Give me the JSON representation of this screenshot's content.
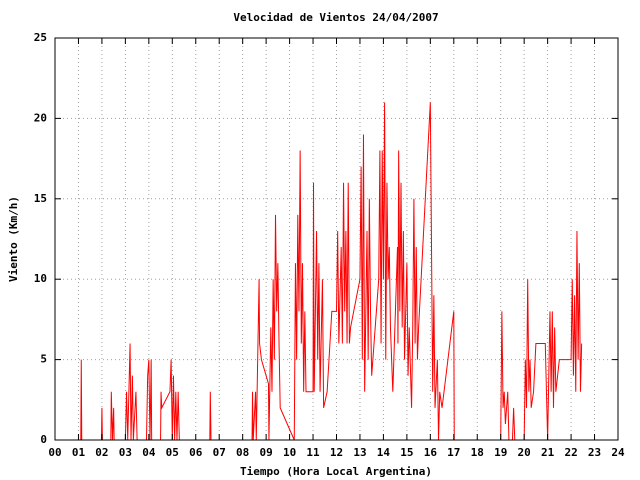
{
  "chart_data": {
    "type": "line",
    "title": "Velocidad de Vientos 24/04/2007",
    "x_label": "Tiempo (Hora Local Argentina)",
    "y_label": "Viento (Km/h)",
    "xlim": [
      0,
      24
    ],
    "ylim": [
      0,
      25
    ],
    "xticks": [
      {
        "value": 0,
        "label": "00"
      },
      {
        "value": 1,
        "label": "01"
      },
      {
        "value": 2,
        "label": "02"
      },
      {
        "value": 3,
        "label": "03"
      },
      {
        "value": 4,
        "label": "04"
      },
      {
        "value": 5,
        "label": "05"
      },
      {
        "value": 6,
        "label": "06"
      },
      {
        "value": 7,
        "label": "07"
      },
      {
        "value": 8,
        "label": "08"
      },
      {
        "value": 9,
        "label": "09"
      },
      10,
      11,
      12,
      13,
      14,
      15,
      16,
      17,
      18,
      19,
      20,
      21,
      22,
      23,
      24
    ],
    "yticks": [
      0,
      5,
      10,
      15,
      20,
      25
    ],
    "grid": true,
    "x": [
      0,
      1.1,
      1.12,
      1.14,
      1.98,
      2.0,
      2.02,
      2.38,
      2.4,
      2.45,
      2.5,
      2.52,
      3.0,
      3.05,
      3.1,
      3.2,
      3.24,
      3.3,
      3.34,
      3.45,
      3.5,
      3.9,
      3.95,
      4.0,
      4.05,
      4.1,
      4.12,
      4.5,
      4.52,
      4.55,
      4.9,
      4.95,
      5.0,
      5.05,
      5.1,
      5.15,
      5.2,
      5.25,
      5.3,
      6.6,
      6.62,
      6.65,
      8.4,
      8.42,
      8.45,
      8.55,
      8.58,
      8.7,
      8.72,
      8.8,
      9.1,
      9.12,
      9.2,
      9.25,
      9.3,
      9.35,
      9.4,
      9.45,
      9.5,
      9.55,
      9.6,
      10.2,
      10.25,
      10.3,
      10.35,
      10.4,
      10.45,
      10.5,
      10.55,
      10.6,
      10.65,
      10.7,
      11.0,
      11.02,
      11.05,
      11.15,
      11.2,
      11.25,
      11.3,
      11.4,
      11.45,
      11.6,
      11.8,
      12.0,
      12.05,
      12.1,
      12.2,
      12.25,
      12.3,
      12.35,
      12.4,
      12.45,
      12.5,
      12.55,
      12.6,
      13.0,
      13.05,
      13.1,
      13.15,
      13.2,
      13.3,
      13.35,
      13.4,
      13.45,
      13.5,
      13.8,
      13.85,
      13.9,
      13.95,
      14.0,
      14.05,
      14.1,
      14.15,
      14.2,
      14.25,
      14.3,
      14.4,
      14.6,
      14.62,
      14.65,
      14.7,
      14.75,
      14.8,
      14.85,
      14.9,
      15.0,
      15.05,
      15.1,
      15.2,
      15.25,
      15.3,
      15.35,
      15.4,
      15.45,
      15.5,
      16.0,
      16.05,
      16.1,
      16.15,
      16.2,
      16.3,
      16.35,
      16.4,
      16.5,
      17.0,
      17.02,
      19.0,
      19.05,
      19.1,
      19.15,
      19.2,
      19.3,
      19.35,
      19.5,
      19.55,
      19.6,
      20.0,
      20.05,
      20.1,
      20.15,
      20.2,
      20.25,
      20.3,
      20.4,
      20.5,
      20.9,
      21.0,
      21.1,
      21.15,
      21.2,
      21.25,
      21.3,
      21.35,
      21.5,
      22.0,
      22.05,
      22.1,
      22.15,
      22.2,
      22.25,
      22.3,
      22.35,
      22.4,
      22.45
    ],
    "series": [
      {
        "color": "#ff0000",
        "values": [
          0,
          0,
          5,
          0,
          0,
          2,
          0,
          0,
          3,
          0,
          2,
          0,
          0,
          3,
          0,
          6,
          0,
          4,
          0,
          3,
          0,
          0,
          4,
          5,
          0,
          5,
          0,
          0,
          3,
          2,
          3,
          5,
          0,
          4,
          0,
          3,
          0,
          3,
          0,
          0,
          3,
          0,
          0,
          3,
          0,
          3,
          0,
          10,
          6,
          5,
          3.5,
          0,
          7,
          3,
          10,
          5,
          14,
          8,
          11,
          6,
          2,
          0,
          11,
          5,
          14,
          8,
          18,
          6,
          11,
          3,
          8,
          3,
          3,
          16,
          3,
          13,
          5,
          11,
          3,
          10,
          2,
          3,
          8,
          8,
          13,
          6,
          12,
          6,
          16,
          8,
          13,
          6,
          16,
          6,
          7,
          10,
          17,
          5,
          19,
          3,
          13,
          5,
          15,
          8,
          4,
          10,
          18,
          6,
          18,
          10,
          21,
          5,
          16,
          10,
          12,
          7,
          3,
          12,
          6,
          18,
          8,
          16,
          7,
          13,
          5,
          11,
          4,
          7,
          2,
          7,
          15,
          6,
          12,
          5,
          7,
          21,
          12,
          3,
          9,
          2,
          5,
          0,
          3,
          2,
          8,
          0,
          0,
          8,
          2,
          3,
          1,
          3,
          0,
          0,
          2,
          0,
          0,
          5,
          2,
          10,
          3,
          5,
          2,
          3,
          6,
          6,
          0,
          8,
          3,
          8,
          2,
          7,
          3,
          5,
          5,
          10,
          4,
          9,
          3,
          13,
          5,
          11,
          3,
          6
        ]
      }
    ]
  }
}
